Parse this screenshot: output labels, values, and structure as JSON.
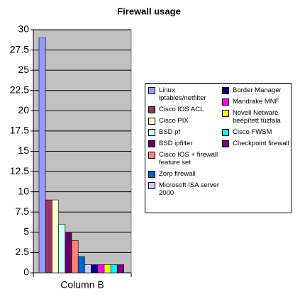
{
  "chart_data": {
    "type": "bar",
    "title": "Firewall usage",
    "categories": [
      "Column B"
    ],
    "series": [
      {
        "name": "Linux iptables/netfilter",
        "color": "#9999ff",
        "values": [
          29
        ]
      },
      {
        "name": "Cisco IOS ACL",
        "color": "#993366",
        "values": [
          9
        ]
      },
      {
        "name": "Cisco PIX",
        "color": "#ffffcc",
        "values": [
          9
        ]
      },
      {
        "name": "BSD pf",
        "color": "#ccffff",
        "values": [
          6
        ]
      },
      {
        "name": "BSD ipfilter",
        "color": "#660066",
        "values": [
          5
        ]
      },
      {
        "name": "Cisco IOS + firewall feature set",
        "color": "#ff8080",
        "values": [
          4
        ]
      },
      {
        "name": "Zorp firewall",
        "color": "#0066cc",
        "values": [
          2
        ]
      },
      {
        "name": "Microsoft ISA server 2000",
        "color": "#ccccff",
        "values": [
          1
        ]
      },
      {
        "name": "Border Manager",
        "color": "#000080",
        "values": [
          1
        ]
      },
      {
        "name": "Mandrake MNF",
        "color": "#ff00ff",
        "values": [
          1
        ]
      },
      {
        "name": "Novell Netware beépített tüzfala",
        "color": "#ffff00",
        "values": [
          1
        ]
      },
      {
        "name": "Cisco FWSM",
        "color": "#00ffff",
        "values": [
          1
        ]
      },
      {
        "name": "Checkpoint firewall",
        "color": "#800080",
        "values": [
          1
        ]
      }
    ],
    "ylim": [
      0,
      30
    ],
    "yticks": [
      0,
      2.5,
      5,
      7.5,
      10,
      12.5,
      15,
      17.5,
      20,
      22.5,
      25,
      27.5,
      30
    ],
    "grid": true,
    "plot_background": "#c0c0c0",
    "legend": "right"
  }
}
